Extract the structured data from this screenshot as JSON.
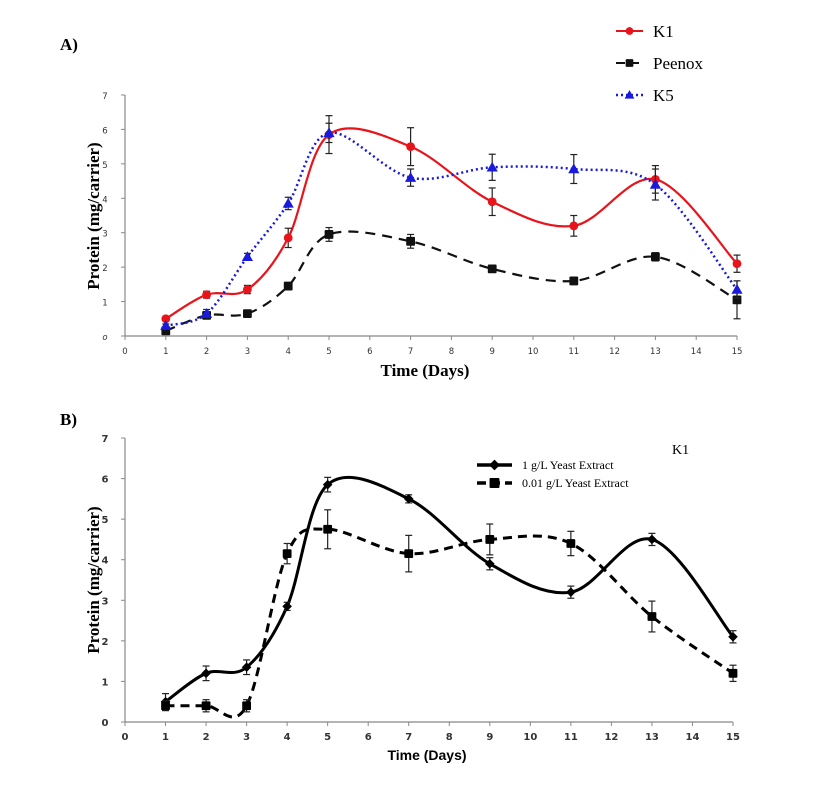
{
  "chart_data": [
    {
      "panel_label": "A)",
      "type": "line",
      "title": "",
      "xlabel": "Time (Days)",
      "ylabel": "Protein (mg/carrier)",
      "xlim": [
        0,
        15
      ],
      "ylim": [
        0,
        7
      ],
      "x_ticks": [
        "0",
        "1",
        "2",
        "3",
        "4",
        "5",
        "6",
        "7",
        "8",
        "9",
        "10",
        "11",
        "12",
        "13",
        "14",
        "15"
      ],
      "y_ticks": [
        "0",
        "1",
        "2",
        "3",
        "4",
        "5",
        "6",
        "7"
      ],
      "grid": false,
      "legend_position": "top-right (outside, above plot)",
      "x": [
        1,
        2,
        3,
        4,
        5,
        7,
        9,
        11,
        13,
        15
      ],
      "series": [
        {
          "name": "K1",
          "color": "#e8141b",
          "style": "solid",
          "marker": "circle",
          "values": [
            0.5,
            1.2,
            1.35,
            2.85,
            5.85,
            5.5,
            3.9,
            3.2,
            4.55,
            2.1
          ],
          "errors": [
            0.05,
            0.1,
            0.12,
            0.28,
            0.55,
            0.55,
            0.4,
            0.3,
            0.4,
            0.25
          ]
        },
        {
          "name": "Peenox",
          "color": "#111111",
          "style": "dashed",
          "marker": "square",
          "values": [
            0.15,
            0.6,
            0.65,
            1.45,
            2.95,
            2.75,
            1.95,
            1.6,
            2.3,
            1.05
          ],
          "errors": [
            0.05,
            0.05,
            0.05,
            0.05,
            0.2,
            0.2,
            0.1,
            0.05,
            0.12,
            0.55
          ]
        },
        {
          "name": "K5",
          "color": "#1a1adb",
          "style": "dotted",
          "marker": "triangle",
          "values": [
            0.3,
            0.65,
            2.3,
            3.85,
            5.9,
            4.6,
            4.9,
            4.85,
            4.4,
            1.35
          ],
          "errors": [
            0.05,
            0.12,
            0.1,
            0.18,
            0.28,
            0.25,
            0.38,
            0.42,
            0.45,
            0.25
          ]
        }
      ]
    },
    {
      "panel_label": "B)",
      "type": "line",
      "title": "",
      "annotation": "K1",
      "xlabel": "Time (Days)",
      "ylabel": "Protein (mg/carrier)",
      "xlim": [
        0,
        15
      ],
      "ylim": [
        0,
        7
      ],
      "x_ticks": [
        "0",
        "1",
        "2",
        "3",
        "4",
        "5",
        "6",
        "7",
        "8",
        "9",
        "10",
        "11",
        "12",
        "13",
        "14",
        "15"
      ],
      "y_ticks": [
        "0",
        "1",
        "2",
        "3",
        "4",
        "5",
        "6",
        "7"
      ],
      "grid": false,
      "legend_position": "top-right",
      "x": [
        1,
        2,
        3,
        4,
        5,
        7,
        9,
        11,
        13,
        15
      ],
      "series": [
        {
          "name": "1 g/L Yeast Extract",
          "color": "#000000",
          "style": "solid",
          "marker": "diamond",
          "values": [
            0.5,
            1.2,
            1.35,
            2.85,
            5.85,
            5.5,
            3.9,
            3.2,
            4.5,
            2.1
          ],
          "errors": [
            0.2,
            0.18,
            0.18,
            0.1,
            0.18,
            0.1,
            0.15,
            0.15,
            0.15,
            0.15
          ]
        },
        {
          "name": "0.01 g/L Yeast Extract",
          "color": "#000000",
          "style": "dashed",
          "marker": "square",
          "values": [
            0.4,
            0.4,
            0.4,
            4.15,
            4.75,
            4.15,
            4.5,
            4.4,
            2.6,
            1.2
          ],
          "errors": [
            0.12,
            0.15,
            0.15,
            0.25,
            0.48,
            0.45,
            0.38,
            0.3,
            0.38,
            0.2
          ]
        }
      ]
    }
  ]
}
